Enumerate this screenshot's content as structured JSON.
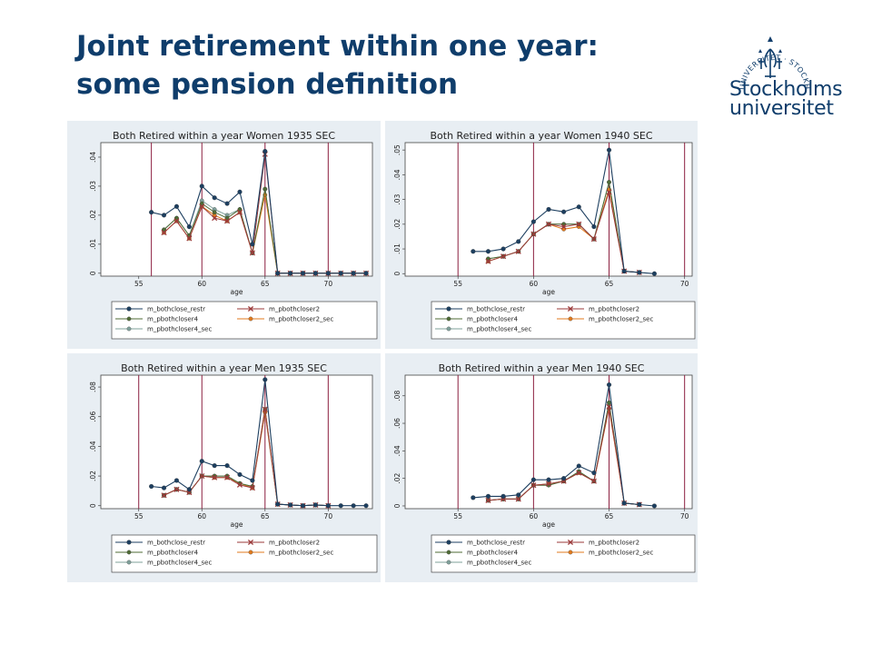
{
  "slide": {
    "title_line1": "Joint retirement within one year:",
    "title_line2": "some pension definition"
  },
  "logo": {
    "line1": "Stockholms",
    "line2": "universitet",
    "ring_text": "UNIVERSITET · STOCKHOLMS ·"
  },
  "colors": {
    "title": "#0f3d6b",
    "panel_bg": "#e8eef3",
    "vline": "#8b1e3f",
    "series": [
      "#1d3f60",
      "#9b3a3a",
      "#4f6b36",
      "#e07a1d",
      "#7fa09a"
    ]
  },
  "chart_data": [
    {
      "type": "line",
      "title": "Both Retired within a year Women 1935 SEC",
      "xlabel": "age",
      "ylabel": "",
      "xlim": [
        52,
        73.5
      ],
      "ylim": [
        -0.001,
        0.045
      ],
      "xticks": [
        55,
        60,
        65,
        70
      ],
      "xtick_labels": [
        "55",
        "60",
        "65",
        "70"
      ],
      "yticks": [
        0,
        0.01,
        0.02,
        0.03,
        0.04
      ],
      "ytick_labels": [
        "0",
        ".01",
        ".02",
        ".03",
        ".04"
      ],
      "vlines": [
        56,
        60,
        65,
        70
      ],
      "legend_position": "bottom",
      "series": [
        {
          "name": "m_bothclose_restr",
          "x": [
            56,
            57,
            58,
            59,
            60,
            61,
            62,
            63,
            64,
            65,
            66,
            67,
            68,
            69,
            70,
            71,
            72,
            73
          ],
          "values": [
            0.021,
            0.02,
            0.023,
            0.016,
            0.03,
            0.026,
            0.024,
            0.028,
            0.01,
            0.042,
            0,
            0,
            0,
            0,
            0,
            0,
            0,
            0
          ]
        },
        {
          "name": "m_pbothcloser2",
          "x": [
            57,
            58,
            59,
            60,
            61,
            62,
            63,
            64,
            65,
            66,
            67,
            68,
            69,
            70,
            71,
            72,
            73
          ],
          "values": [
            0.014,
            0.018,
            0.012,
            0.023,
            0.019,
            0.018,
            0.021,
            0.007,
            0.041,
            0,
            0,
            0,
            0,
            0,
            0,
            0,
            0
          ]
        },
        {
          "name": "m_pbothcloser4",
          "x": [
            57,
            58,
            59,
            60,
            61,
            62,
            63,
            64,
            65,
            66,
            67,
            68,
            69,
            70,
            71,
            72,
            73
          ],
          "values": [
            0.015,
            0.019,
            0.013,
            0.024,
            0.021,
            0.019,
            0.022,
            0.007,
            0.029,
            0,
            0,
            0,
            0,
            0,
            0,
            0,
            0
          ]
        },
        {
          "name": "m_pbothcloser2_sec",
          "x": [
            57,
            58,
            59,
            60,
            61,
            62,
            63,
            64,
            65,
            66,
            67,
            68,
            69,
            70,
            71,
            72,
            73
          ],
          "values": [
            0.014,
            0.018,
            0.012,
            0.023,
            0.02,
            0.018,
            0.021,
            0.007,
            0.027,
            0,
            0,
            0,
            0,
            0,
            0,
            0,
            0
          ]
        },
        {
          "name": "m_pbothcloser4_sec",
          "x": [
            57,
            58,
            59,
            60,
            61,
            62,
            63,
            64,
            65,
            66,
            67,
            68,
            69,
            70,
            71,
            72,
            73
          ],
          "values": [
            0.015,
            0.019,
            0.013,
            0.025,
            0.022,
            0.02,
            0.022,
            0.007,
            0.029,
            0,
            0,
            0,
            0,
            0,
            0,
            0,
            0
          ]
        }
      ]
    },
    {
      "type": "line",
      "title": "Both Retired within a year Women 1940 SEC",
      "xlabel": "age",
      "ylabel": "",
      "xlim": [
        51.5,
        70.5
      ],
      "ylim": [
        -0.001,
        0.053
      ],
      "xticks": [
        55,
        60,
        65,
        70
      ],
      "xtick_labels": [
        "55",
        "60",
        "65",
        "70"
      ],
      "yticks": [
        0,
        0.01,
        0.02,
        0.03,
        0.04,
        0.05
      ],
      "ytick_labels": [
        "0",
        ".01",
        ".02",
        ".03",
        ".04",
        ".05"
      ],
      "vlines": [
        55,
        60,
        65,
        70
      ],
      "legend_position": "bottom",
      "series": [
        {
          "name": "m_bothclose_restr",
          "x": [
            56,
            57,
            58,
            59,
            60,
            61,
            62,
            63,
            64,
            65,
            66,
            67,
            68
          ],
          "values": [
            0.009,
            0.009,
            0.01,
            0.013,
            0.021,
            0.026,
            0.025,
            0.027,
            0.019,
            0.05,
            0.001,
            0.0005,
            0
          ]
        },
        {
          "name": "m_pbothcloser2",
          "x": [
            57,
            58,
            59,
            60,
            61,
            62,
            63,
            64,
            65,
            66,
            67
          ],
          "values": [
            0.005,
            0.007,
            0.009,
            0.016,
            0.02,
            0.019,
            0.02,
            0.014,
            0.033,
            0.001,
            0.0005
          ]
        },
        {
          "name": "m_pbothcloser4",
          "x": [
            57,
            58,
            59,
            60,
            61,
            62,
            63,
            64,
            65,
            66,
            67
          ],
          "values": [
            0.006,
            0.007,
            0.009,
            0.016,
            0.02,
            0.02,
            0.02,
            0.014,
            0.037,
            0.001,
            0.0005
          ]
        },
        {
          "name": "m_pbothcloser2_sec",
          "x": [
            57,
            58,
            59,
            60,
            61,
            62,
            63,
            64,
            65,
            66,
            67
          ],
          "values": [
            0.005,
            0.007,
            0.009,
            0.016,
            0.02,
            0.018,
            0.019,
            0.014,
            0.034,
            0.001,
            0.0005
          ]
        },
        {
          "name": "m_pbothcloser4_sec",
          "x": [
            57,
            58,
            59,
            60,
            61,
            62,
            63,
            64,
            65,
            66,
            67
          ],
          "values": [
            0.006,
            0.007,
            0.009,
            0.016,
            0.02,
            0.02,
            0.02,
            0.014,
            0.037,
            0.001,
            0.0005
          ]
        }
      ]
    },
    {
      "type": "line",
      "title": "Both Retired within a year Men 1935 SEC",
      "xlabel": "age",
      "ylabel": "",
      "xlim": [
        52,
        73.5
      ],
      "ylim": [
        -0.002,
        0.088
      ],
      "xticks": [
        55,
        60,
        65,
        70
      ],
      "xtick_labels": [
        "55",
        "60",
        "65",
        "70"
      ],
      "yticks": [
        0,
        0.02,
        0.04,
        0.06,
        0.08
      ],
      "ytick_labels": [
        "0",
        ".02",
        ".04",
        ".06",
        ".08"
      ],
      "vlines": [
        55,
        60,
        65,
        70
      ],
      "legend_position": "bottom",
      "series": [
        {
          "name": "m_bothclose_restr",
          "x": [
            56,
            57,
            58,
            59,
            60,
            61,
            62,
            63,
            64,
            65,
            66,
            67,
            68,
            69,
            70,
            71,
            72,
            73
          ],
          "values": [
            0.013,
            0.012,
            0.017,
            0.011,
            0.03,
            0.027,
            0.027,
            0.021,
            0.017,
            0.085,
            0.001,
            0.0005,
            0,
            0.0005,
            0,
            0,
            0,
            0
          ]
        },
        {
          "name": "m_pbothcloser2",
          "x": [
            57,
            58,
            59,
            60,
            61,
            62,
            63,
            64,
            65,
            66,
            67,
            68,
            69,
            70
          ],
          "values": [
            0.007,
            0.011,
            0.009,
            0.02,
            0.019,
            0.019,
            0.014,
            0.012,
            0.065,
            0.001,
            0.0005,
            0,
            0.0005,
            0
          ]
        },
        {
          "name": "m_pbothcloser4",
          "x": [
            57,
            58,
            59,
            60,
            61,
            62,
            63,
            64,
            65,
            66,
            67,
            68,
            69,
            70
          ],
          "values": [
            0.007,
            0.011,
            0.009,
            0.02,
            0.02,
            0.02,
            0.015,
            0.013,
            0.065,
            0.001,
            0.0005,
            0,
            0.0005,
            0
          ]
        },
        {
          "name": "m_pbothcloser2_sec",
          "x": [
            57,
            58,
            59,
            60,
            61,
            62,
            63,
            64,
            65,
            66,
            67,
            68,
            69,
            70
          ],
          "values": [
            0.007,
            0.011,
            0.009,
            0.02,
            0.019,
            0.019,
            0.015,
            0.012,
            0.063,
            0.001,
            0.0005,
            0,
            0.0005,
            0
          ]
        },
        {
          "name": "m_pbothcloser4_sec",
          "x": [
            57,
            58,
            59,
            60,
            61,
            62,
            63,
            64,
            65,
            66,
            67,
            68,
            69,
            70
          ],
          "values": [
            0.007,
            0.011,
            0.009,
            0.02,
            0.02,
            0.02,
            0.015,
            0.013,
            0.063,
            0.001,
            0.0005,
            0,
            0.0005,
            0
          ]
        }
      ]
    },
    {
      "type": "line",
      "title": "Both Retired within a year Men 1940 SEC",
      "xlabel": "age",
      "ylabel": "",
      "xlim": [
        51.5,
        70.5
      ],
      "ylim": [
        -0.002,
        0.095
      ],
      "xticks": [
        55,
        60,
        65,
        70
      ],
      "xtick_labels": [
        "55",
        "60",
        "65",
        "70"
      ],
      "yticks": [
        0,
        0.02,
        0.04,
        0.06,
        0.08
      ],
      "ytick_labels": [
        "0",
        ".02",
        ".04",
        ".06",
        ".08"
      ],
      "vlines": [
        55,
        60,
        65,
        70
      ],
      "legend_position": "bottom",
      "series": [
        {
          "name": "m_bothclose_restr",
          "x": [
            56,
            57,
            58,
            59,
            60,
            61,
            62,
            63,
            64,
            65,
            66,
            67,
            68
          ],
          "values": [
            0.006,
            0.007,
            0.007,
            0.008,
            0.019,
            0.019,
            0.02,
            0.029,
            0.024,
            0.088,
            0.002,
            0.001,
            0
          ]
        },
        {
          "name": "m_pbothcloser2",
          "x": [
            57,
            58,
            59,
            60,
            61,
            62,
            63,
            64,
            65,
            66,
            67
          ],
          "values": [
            0.004,
            0.005,
            0.005,
            0.015,
            0.016,
            0.018,
            0.024,
            0.018,
            0.072,
            0.002,
            0.001
          ]
        },
        {
          "name": "m_pbothcloser4",
          "x": [
            57,
            58,
            59,
            60,
            61,
            62,
            63,
            64,
            65,
            66,
            67
          ],
          "values": [
            0.004,
            0.005,
            0.005,
            0.015,
            0.015,
            0.018,
            0.025,
            0.018,
            0.075,
            0.002,
            0.001
          ]
        },
        {
          "name": "m_pbothcloser2_sec",
          "x": [
            57,
            58,
            59,
            60,
            61,
            62,
            63,
            64,
            65,
            66,
            67
          ],
          "values": [
            0.004,
            0.005,
            0.005,
            0.015,
            0.016,
            0.018,
            0.024,
            0.018,
            0.071,
            0.002,
            0.001
          ]
        },
        {
          "name": "m_pbothcloser4_sec",
          "x": [
            57,
            58,
            59,
            60,
            61,
            62,
            63,
            64,
            65,
            66,
            67
          ],
          "values": [
            0.004,
            0.005,
            0.005,
            0.015,
            0.016,
            0.018,
            0.025,
            0.018,
            0.075,
            0.002,
            0.001
          ]
        }
      ]
    }
  ]
}
